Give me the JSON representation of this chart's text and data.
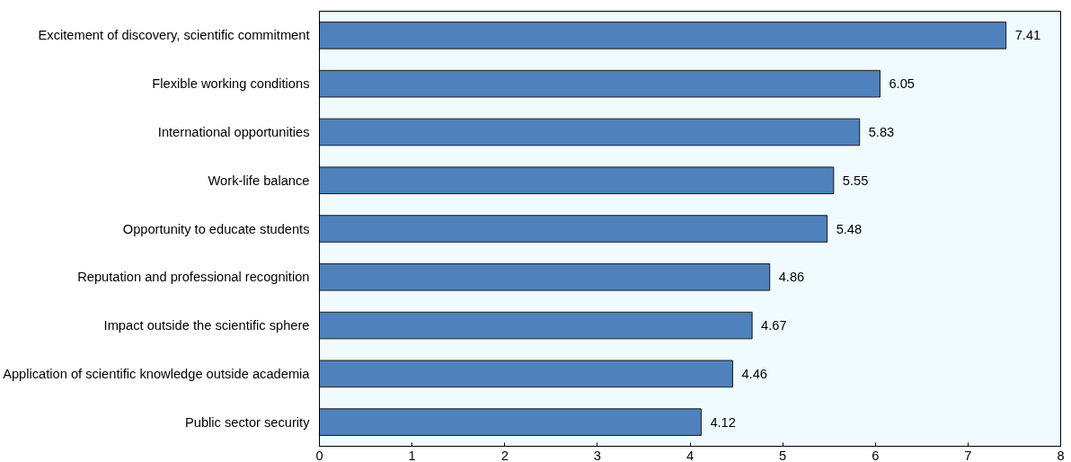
{
  "chart_data": {
    "type": "bar",
    "orientation": "horizontal",
    "categories": [
      "Excitement of discovery, scientific commitment",
      "Flexible working conditions",
      "International opportunities",
      "Work-life balance",
      "Opportunity to educate students",
      "Reputation and professional recognition",
      "Impact outside the scientific sphere",
      "Application of scientific knowledge outside academia",
      "Public sector security"
    ],
    "values": [
      7.41,
      6.05,
      5.83,
      5.55,
      5.48,
      4.86,
      4.67,
      4.46,
      4.12
    ],
    "color": "#4f81bd",
    "xlim": [
      0,
      8
    ],
    "xticks": [
      0,
      1,
      2,
      3,
      4,
      5,
      6,
      7,
      8
    ],
    "data_labels": true,
    "grid": false
  }
}
